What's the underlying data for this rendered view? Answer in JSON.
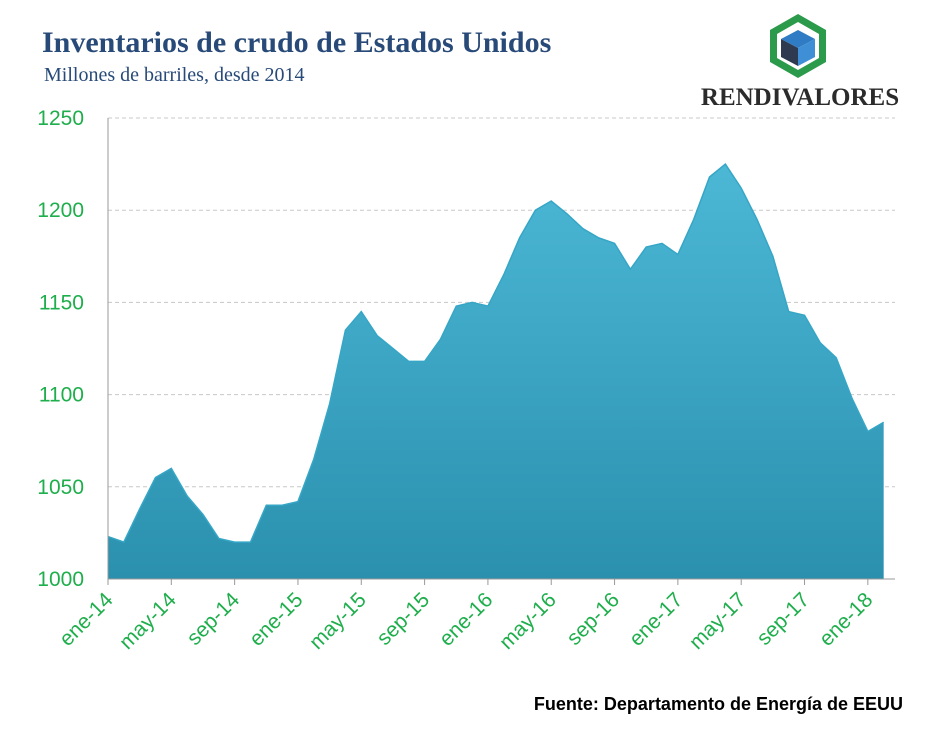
{
  "logo": "RENDIVALORES",
  "chart_data": {
    "type": "area",
    "title": "Inventarios de crudo de Estados Unidos",
    "subtitle": "Millones de barriles, desde 2014",
    "source": "Fuente: Departamento de Energía de EEUU",
    "categories": [
      "ene-14",
      null,
      null,
      null,
      "may-14",
      null,
      null,
      null,
      "sep-14",
      null,
      null,
      null,
      "ene-15",
      null,
      null,
      null,
      "may-15",
      null,
      null,
      null,
      "sep-15",
      null,
      null,
      null,
      "ene-16",
      null,
      null,
      null,
      "may-16",
      null,
      null,
      null,
      "sep-16",
      null,
      null,
      null,
      "ene-17",
      null,
      null,
      null,
      "may-17",
      null,
      null,
      null,
      "sep-17",
      null,
      null,
      null,
      "ene-18",
      null
    ],
    "values": [
      1023,
      1020,
      1038,
      1055,
      1060,
      1045,
      1035,
      1022,
      1020,
      1020,
      1040,
      1040,
      1042,
      1065,
      1095,
      1135,
      1145,
      1132,
      1125,
      1118,
      1118,
      1130,
      1148,
      1150,
      1148,
      1165,
      1185,
      1200,
      1205,
      1198,
      1190,
      1185,
      1182,
      1168,
      1180,
      1182,
      1176,
      1195,
      1218,
      1225,
      1212,
      1195,
      1175,
      1145,
      1143,
      1128,
      1120,
      1098,
      1080,
      1085
    ],
    "color": "#36a6c6",
    "ylim": [
      1000,
      1250
    ],
    "yticks": [
      1000,
      1050,
      1100,
      1150,
      1200,
      1250
    ],
    "grid": true
  }
}
